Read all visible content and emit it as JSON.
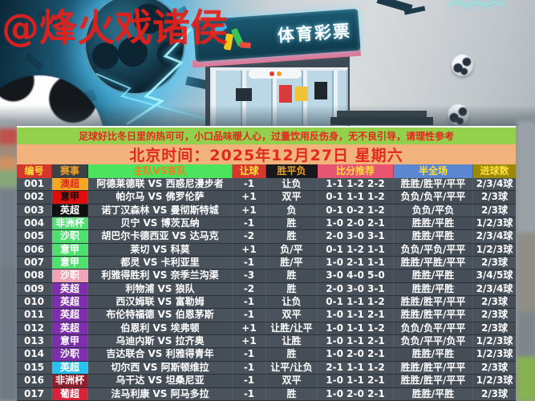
{
  "watermark": "@烽火戏诸侯",
  "hero": {
    "sign_text": "体育彩票"
  },
  "notice": {
    "text": "足球好比冬日里的热可可，小口品味暖人心，过量饮用反伤身，无不良引导，请理性参考"
  },
  "date_banner": {
    "text": "北京时间：2025年12月27日 星期六"
  },
  "colors": {
    "notice_bg": "#93d04c",
    "notice_text": "#e3291f",
    "date_bg": "#f2b27b",
    "date_text": "#e02a1c",
    "row_bg": "#4a525b",
    "row_text": "#ffffff"
  },
  "table": {
    "columns": [
      {
        "key": "id",
        "label": "编号",
        "bg": "#d6372c",
        "fg": "#ffe03a"
      },
      {
        "key": "league",
        "label": "赛事",
        "bg": "#3c4146",
        "fg": "#f0a028"
      },
      {
        "key": "match",
        "label": "主队VS客队",
        "bg": "#4ce45e",
        "fg": "#ef7f1f"
      },
      {
        "key": "handicap",
        "label": "让球",
        "bg": "#d6372c",
        "fg": "#ffe03a"
      },
      {
        "key": "wdl",
        "label": "胜平负",
        "bg": "#17191c",
        "fg": "#f0a028"
      },
      {
        "key": "score",
        "label": "比分推荐",
        "bg": "#e85570",
        "fg": "#ffe03a"
      },
      {
        "key": "halffull",
        "label": "半全场",
        "bg": "#5b86d2",
        "fg": "#ffe03a"
      },
      {
        "key": "goals",
        "label": "进球数",
        "bg": "#9a8a07",
        "fg": "#ffe03a"
      }
    ],
    "rows": [
      {
        "id": "001",
        "league": "澳超",
        "league_bg": "#f5a623",
        "league_fg": "#e02b1d",
        "match": "阿德莱德联 VS 西惑尼漫步者",
        "handicap": "-1",
        "wdl": "让负",
        "score": "1-1 1-2 2-2",
        "halffull": "胜胜/胜平/平平",
        "goals": "2/3/4球"
      },
      {
        "id": "002",
        "league": "意甲",
        "league_bg": "#e00d0d",
        "league_fg": "#101010",
        "match": "帕尔马 VS 佛罗伦萨",
        "handicap": "+1",
        "wdl": "双平",
        "score": "0-1 1-1 1-2",
        "halffull": "负负/负平/平平",
        "goals": "2/3球"
      },
      {
        "id": "003",
        "league": "英超",
        "league_bg": "#101010",
        "league_fg": "#ffffff",
        "match": "诺丁汉森林 VS 曼彻斯特城",
        "handicap": "+1",
        "wdl": "负",
        "score": "0-1 0-2 1-2",
        "halffull": "负负/平负",
        "goals": "2/3球"
      },
      {
        "id": "004",
        "league": "非洲杯",
        "league_bg": "#4fe070",
        "league_fg": "#ffffff",
        "match": "贝宁 VS 博茨瓦纳",
        "handicap": "-1",
        "wdl": "胜",
        "score": "1-0 2-0 2-1",
        "halffull": "胜胜/平胜",
        "goals": "1/2/3球"
      },
      {
        "id": "005",
        "league": "沙职",
        "league_bg": "#4fe070",
        "league_fg": "#ffffff",
        "match": "胡巴尔卡德西亚 VS 达马克",
        "handicap": "-2",
        "wdl": "胜",
        "score": "2-0 3-0 3-1",
        "halffull": "胜胜/平胜",
        "goals": "2/3/4球"
      },
      {
        "id": "006",
        "league": "意甲",
        "league_bg": "#4fe070",
        "league_fg": "#ffffff",
        "match": "莱切 VS 科莫",
        "handicap": "+1",
        "wdl": "负/平",
        "score": "0-1 1-2 1-1",
        "halffull": "负负/平负/平平",
        "goals": "1/2/3球"
      },
      {
        "id": "007",
        "league": "意甲",
        "league_bg": "#4fe070",
        "league_fg": "#ffffff",
        "match": "都灵 VS 卡利亚里",
        "handicap": "-1",
        "wdl": "胜/平",
        "score": "1-0 2-1 1-1",
        "halffull": "胜胜/平胜/平平",
        "goals": "2/3球"
      },
      {
        "id": "008",
        "league": "沙职",
        "league_bg": "#f0a3b6",
        "league_fg": "#ffffff",
        "match": "利雅得胜利 VS 奈季兰沟渠",
        "handicap": "-3",
        "wdl": "胜",
        "score": "3-0 4-0 5-0",
        "halffull": "胜胜/平胜",
        "goals": "3/4/5球"
      },
      {
        "id": "009",
        "league": "英超",
        "league_bg": "#7d2fae",
        "league_fg": "#ffffff",
        "match": "利物浦 VS 狼队",
        "handicap": "-2",
        "wdl": "胜",
        "score": "2-0 3-0 3-1",
        "halffull": "胜胜/平胜",
        "goals": "2/3/4球"
      },
      {
        "id": "010",
        "league": "英超",
        "league_bg": "#7d2fae",
        "league_fg": "#ffffff",
        "match": "西汉姆联 VS 富勒姆",
        "handicap": "-1",
        "wdl": "让负",
        "score": "0-1 1-1 1-2",
        "halffull": "胜胜/胜平/平平",
        "goals": "2/3球"
      },
      {
        "id": "011",
        "league": "英超",
        "league_bg": "#7d2fae",
        "league_fg": "#ffffff",
        "match": "布伦特福德 VS 伯恩茅斯",
        "handicap": "-1",
        "wdl": "双平",
        "score": "1-0 1-1 2-1",
        "halffull": "胜胜/胜平/平平",
        "goals": "2/3球"
      },
      {
        "id": "012",
        "league": "英超",
        "league_bg": "#7d2fae",
        "league_fg": "#ffffff",
        "match": "伯恩利 VS 埃弗顿",
        "handicap": "+1",
        "wdl": "让胜/让平",
        "score": "1-0 1-1 1-2",
        "halffull": "负负/负平/平平",
        "goals": "2/3球"
      },
      {
        "id": "013",
        "league": "意甲",
        "league_bg": "#7d2fae",
        "league_fg": "#ffffff",
        "match": "乌迪内斯 VS 拉齐奥",
        "handicap": "+1",
        "wdl": "让胜",
        "score": "1-0 1-1 2-1",
        "halffull": "负负/平平/负平",
        "goals": "1/2/3球"
      },
      {
        "id": "014",
        "league": "沙职",
        "league_bg": "#7d2fae",
        "league_fg": "#ffffff",
        "match": "吉达联合 VS 利雅得青年",
        "handicap": "-1",
        "wdl": "胜",
        "score": "1-0 2-0 2-1",
        "halffull": "胜胜/平胜",
        "goals": "1/2/3球"
      },
      {
        "id": "015",
        "league": "英超",
        "league_bg": "#29c2ef",
        "league_fg": "#ffffff",
        "match": "切尔西 VS 阿斯顿维拉",
        "handicap": "-1",
        "wdl": "让平/让负",
        "score": "2-1 1-1 1-2",
        "halffull": "胜胜/胜平/平平",
        "goals": "2/3球"
      },
      {
        "id": "016",
        "league": "非洲杯",
        "league_bg": "#8e1f2e",
        "league_fg": "#ffffff",
        "match": "乌干达 VS 坦桑尼亚",
        "handicap": "-1",
        "wdl": "双平",
        "score": "1-0 1-1 2-1",
        "halffull": "胜胜/胜平/平平",
        "goals": "1/2/3球"
      },
      {
        "id": "017",
        "league": "葡超",
        "league_bg": "#d5233a",
        "league_fg": "#ffffff",
        "match": "法马利康 VS 阿马多拉",
        "handicap": "-1",
        "wdl": "胜",
        "score": "1-0 2-0 2-1",
        "halffull": "胜胜/平胜",
        "goals": "2/3球"
      }
    ]
  }
}
